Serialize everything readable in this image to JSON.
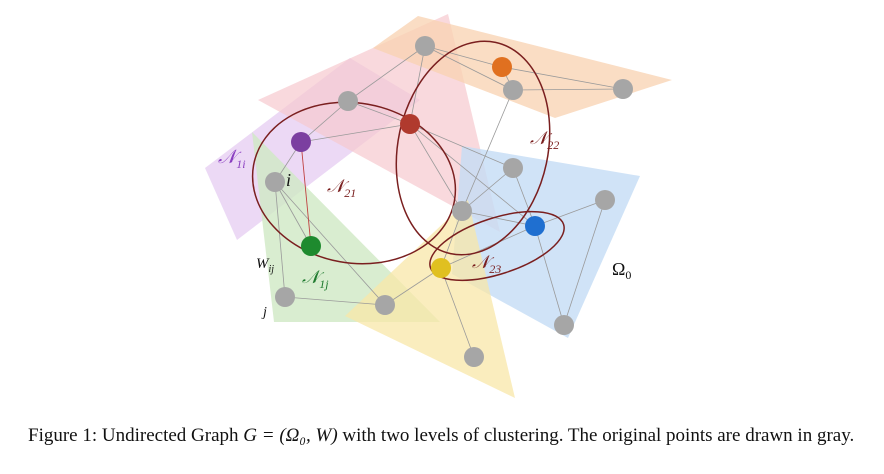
{
  "figure": {
    "labels": {
      "n1i_base": "𝒩",
      "n1i_sub": "1i",
      "n1j_base": "𝒩",
      "n1j_sub": "1j",
      "n21_base": "𝒩",
      "n21_sub": "21",
      "n22_base": "𝒩",
      "n22_sub": "22",
      "n23_base": "𝒩",
      "n23_sub": "23",
      "i": "i",
      "j": "j",
      "wij_base": "W",
      "wij_sub": "ij",
      "omega0_base": "Ω",
      "omega0_sub": "0"
    },
    "colors": {
      "gray_node": "#a6a6a6",
      "purple_node": "#7b3fa0",
      "red_node": "#b03a2e",
      "orange_node": "#e07020",
      "blue_node": "#1f6fd0",
      "green_node": "#1e8a2e",
      "yellow_node": "#e0c020",
      "ellipse": "#7a1f1f",
      "purple_region": "#e6ccf2",
      "pink_region": "#f6c9cf",
      "orange_region": "#f8d2b0",
      "green_region": "#cfe8c4",
      "blue_region": "#c4dcf5",
      "yellow_region": "#f8e7a8"
    }
  },
  "caption": {
    "prefix": "Figure 1: Undirected Graph ",
    "math": "G = (Ω₀, W)",
    "suffix": " with two levels of clustering. The original points are drawn in gray."
  }
}
